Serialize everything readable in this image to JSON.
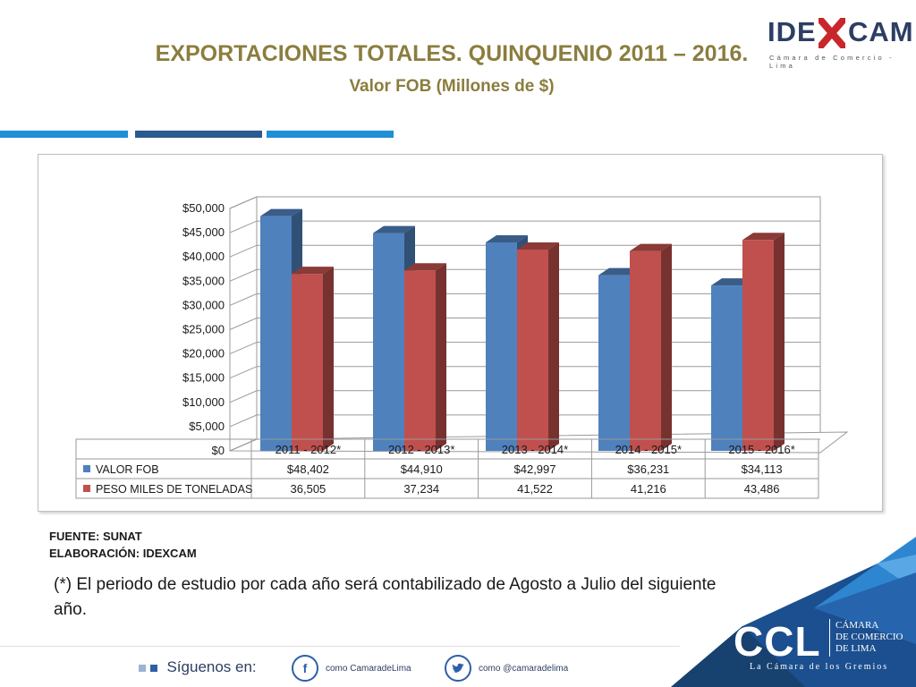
{
  "header": {
    "title": "EXPORTACIONES TOTALES. QUINQUENIO 2011 – 2016.",
    "subtitle": "Valor FOB (Millones de $)"
  },
  "logo": {
    "word_left": "IDE",
    "word_right": "CAM",
    "tagline": "Cámara de Comercio - Lima"
  },
  "chart_data": {
    "type": "bar",
    "categories": [
      "2011 - 2012*",
      "2012 - 2013*",
      "2013 - 2014*",
      "2014 - 2015*",
      "2015 - 2016*"
    ],
    "series": [
      {
        "name": "VALOR FOB",
        "values": [
          48402,
          44910,
          42997,
          36231,
          34113
        ],
        "labels": [
          "$48,402",
          "$44,910",
          "$42,997",
          "$36,231",
          "$34,113"
        ],
        "color": "#4f81bd"
      },
      {
        "name": "PESO MILES DE TONELADAS",
        "values": [
          36505,
          37234,
          41522,
          41216,
          43486
        ],
        "labels": [
          "36,505",
          "37,234",
          "41,522",
          "41,216",
          "43,486"
        ],
        "color": "#c0504d"
      }
    ],
    "ylim": [
      0,
      50000
    ],
    "yticks": [
      "$0",
      "$5,000",
      "$10,000",
      "$15,000",
      "$20,000",
      "$25,000",
      "$30,000",
      "$35,000",
      "$40,000",
      "$45,000",
      "$50,000"
    ],
    "grid": true,
    "data_table": true
  },
  "source": {
    "line1": "FUENTE: SUNAT",
    "line2": "ELABORACIÓN: IDEXCAM"
  },
  "note": "(*) El periodo de estudio por cada año será contabilizado de Agosto a Julio del siguiente año.",
  "footer": {
    "follow": "Síguenos en:",
    "facebook": "como CamaradeLima",
    "twitter": "como @camaradelima",
    "ccl": "CCL",
    "ccl_name_1": "CÁMARA",
    "ccl_name_2": "DE COMERCIO",
    "ccl_name_3": "DE LIMA",
    "ccl_slogan": "La Cámara de los Gremios"
  },
  "colors": {
    "title": "#8b7d3e",
    "navy": "#2d3e63",
    "accent_blue": "#1f8fd6"
  }
}
